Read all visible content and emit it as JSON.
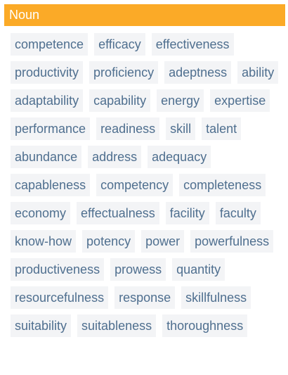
{
  "header": {
    "title": "Noun"
  },
  "colors": {
    "header_bg": "#fbaa27",
    "header_text": "#ffffff",
    "tag_bg": "#f3f4f6",
    "tag_text": "#4f6f8f"
  },
  "synonyms": [
    "competence",
    "efficacy",
    "effectiveness",
    "productivity",
    "proficiency",
    "adeptness",
    "ability",
    "adaptability",
    "capability",
    "energy",
    "expertise",
    "performance",
    "readiness",
    "skill",
    "talent",
    "abundance",
    "address",
    "adequacy",
    "capableness",
    "competency",
    "completeness",
    "economy",
    "effectualness",
    "facility",
    "faculty",
    "know-how",
    "potency",
    "power",
    "powerfulness",
    "productiveness",
    "prowess",
    "quantity",
    "resourcefulness",
    "response",
    "skillfulness",
    "suitability",
    "suitableness",
    "thoroughness"
  ]
}
